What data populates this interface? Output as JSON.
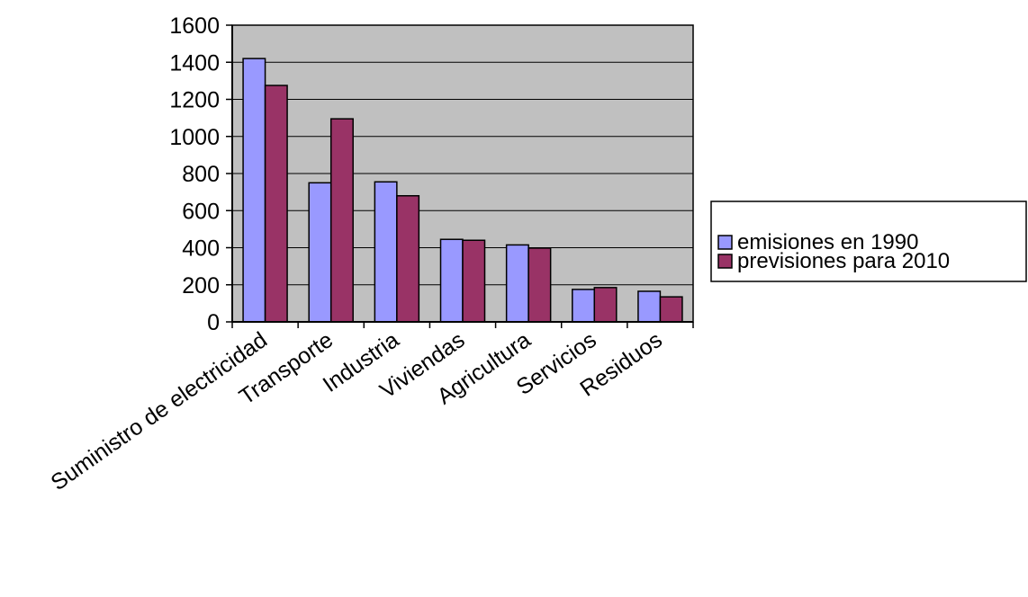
{
  "chart_data": {
    "type": "bar",
    "title": "",
    "xlabel": "",
    "ylabel": "",
    "categories": [
      "Suministro de electricidad",
      "Transporte",
      "Industria",
      "Viviendas",
      "Agricultura",
      "Servicios",
      "Residuos"
    ],
    "series": [
      {
        "name": "emisiones en 1990",
        "values": [
          1420,
          750,
          755,
          445,
          415,
          175,
          165
        ],
        "color": "#9999ff"
      },
      {
        "name": "previsiones para 2010",
        "values": [
          1275,
          1095,
          680,
          440,
          398,
          185,
          135
        ],
        "color": "#993366"
      }
    ],
    "ylim": [
      0,
      1600
    ],
    "yticks": [
      "0",
      "200",
      "400",
      "600",
      "800",
      "1000",
      "1200",
      "1400",
      "1600"
    ],
    "grid": true,
    "plot_background": "#c0c0c0",
    "legend": {
      "position": "right"
    }
  }
}
